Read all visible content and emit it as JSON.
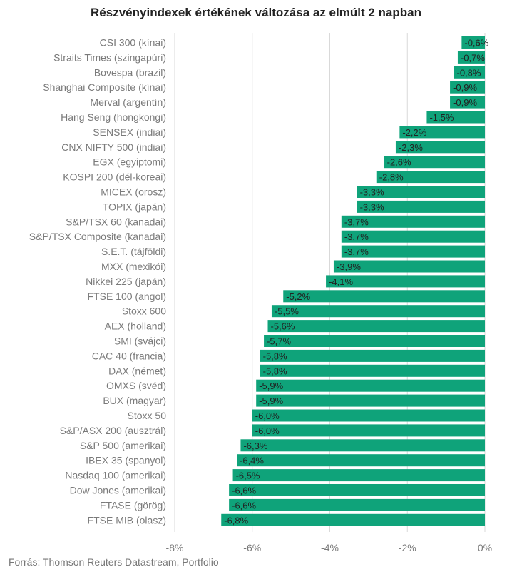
{
  "chart_data": {
    "type": "bar",
    "orientation": "horizontal",
    "title": "Részvényindexek értékének változása az elmúlt 2 napban",
    "source": "Forrás: Thomson Reuters Datastream, Portfolio",
    "categories": [
      "CSI 300 (kínai)",
      "Straits Times (szingapúri)",
      "Bovespa (brazil)",
      "Shanghai Composite (kínai)",
      "Merval (argentín)",
      "Hang Seng (hongkongi)",
      "SENSEX (indiai)",
      "CNX NIFTY 500 (indiai)",
      "EGX (egyiptomi)",
      "KOSPI 200 (dél-koreai)",
      "MICEX (orosz)",
      "TOPIX (japán)",
      "S&P/TSX 60 (kanadai)",
      "S&P/TSX Composite (kanadai)",
      "S.E.T. (tájföldi)",
      "MXX (mexikói)",
      "Nikkei 225 (japán)",
      "FTSE 100 (angol)",
      "Stoxx 600",
      "AEX (holland)",
      "SMI (svájci)",
      "CAC 40 (francia)",
      "DAX (német)",
      "OMXS (svéd)",
      "BUX (magyar)",
      "Stoxx 50",
      "S&P/ASX 200 (ausztrál)",
      "S&P 500 (amerikai)",
      "IBEX 35 (spanyol)",
      "Nasdaq 100 (amerikai)",
      "Dow Jones (amerikai)",
      "FTASE (görög)",
      "FTSE MIB (olasz)"
    ],
    "values": [
      -0.6,
      -0.7,
      -0.8,
      -0.9,
      -0.9,
      -1.5,
      -2.2,
      -2.3,
      -2.6,
      -2.8,
      -3.3,
      -3.3,
      -3.7,
      -3.7,
      -3.7,
      -3.9,
      -4.1,
      -5.2,
      -5.5,
      -5.6,
      -5.7,
      -5.8,
      -5.8,
      -5.9,
      -5.9,
      -6.0,
      -6.0,
      -6.3,
      -6.4,
      -6.5,
      -6.6,
      -6.6,
      -6.8
    ],
    "value_labels": [
      "-0,6%",
      "-0,7%",
      "-0,8%",
      "-0,9%",
      "-0,9%",
      "-1,5%",
      "-2,2%",
      "-2,3%",
      "-2,6%",
      "-2,8%",
      "-3,3%",
      "-3,3%",
      "-3,7%",
      "-3,7%",
      "-3,7%",
      "-3,9%",
      "-4,1%",
      "-5,2%",
      "-5,5%",
      "-5,6%",
      "-5,7%",
      "-5,8%",
      "-5,8%",
      "-5,9%",
      "-5,9%",
      "-6,0%",
      "-6,0%",
      "-6,3%",
      "-6,4%",
      "-6,5%",
      "-6,6%",
      "-6,6%",
      "-6,8%"
    ],
    "xlim": [
      -8,
      0
    ],
    "xticks": [
      -8,
      -6,
      -4,
      -2,
      0
    ],
    "xtick_labels": [
      "-8%",
      "-6%",
      "-4%",
      "-2%",
      "0%"
    ],
    "grid": true,
    "bar_color": "#0fa37a",
    "grid_color": "#d9d9d9"
  }
}
